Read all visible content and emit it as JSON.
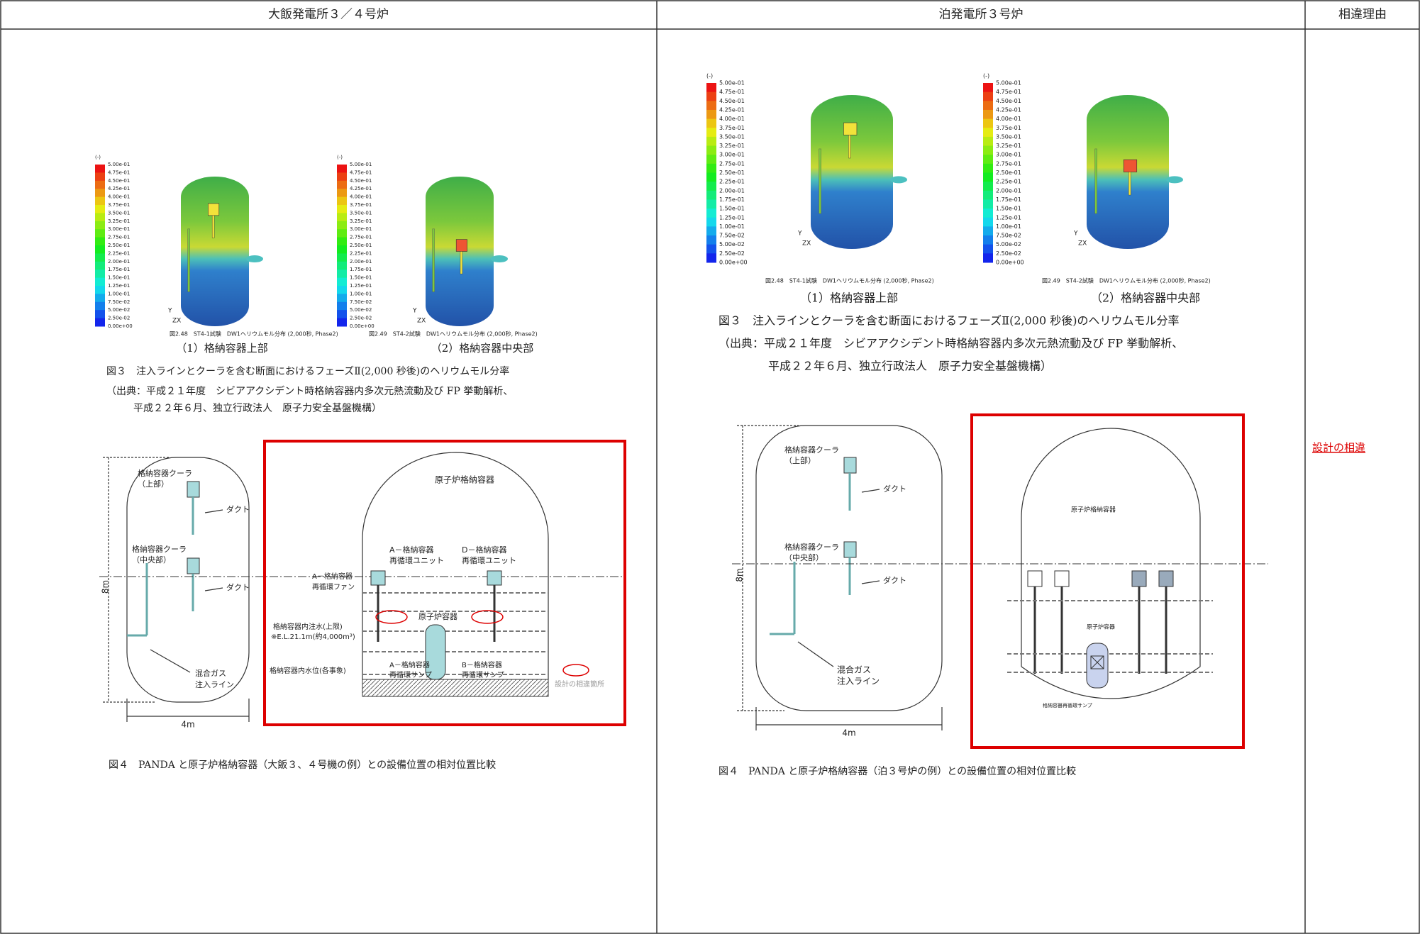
{
  "header": {
    "left": "大飯発電所３／４号炉",
    "middle": "泊発電所３号炉",
    "right": "相違理由"
  },
  "colorbar": {
    "unit": "(-)",
    "labels": [
      "5.00e-01",
      "4.75e-01",
      "4.50e-01",
      "4.25e-01",
      "4.00e-01",
      "3.75e-01",
      "3.50e-01",
      "3.25e-01",
      "3.00e-01",
      "2.75e-01",
      "2.50e-01",
      "2.25e-01",
      "2.00e-01",
      "1.75e-01",
      "1.50e-01",
      "1.25e-01",
      "1.00e-01",
      "7.50e-02",
      "5.00e-02",
      "2.50e-02",
      "0.00e+00"
    ],
    "axis_y": "Y",
    "axis_zx": "ZX"
  },
  "left": {
    "plot_captions": [
      "図2.48　ST4-1試験　DW1ヘリウムモル分布 (2,000秒, Phase2)",
      "図2.49　ST4-2試験　DW1ヘリウムモル分布 (2,000秒, Phase2)"
    ],
    "subcaptions": [
      "（1）格納容器上部",
      "（2）格納容器中央部"
    ],
    "fig3_caption": "図３　注入ラインとクーラを含む断面におけるフェーズⅡ(2,000 秒後)のヘリウムモル分率",
    "source": [
      "（出典：平成２１年度　シビアアクシデント時格納容器内多次元熱流動及び FP 挙動解析、",
      "平成２２年６月、独立行政法人　原子力安全基盤機構）"
    ],
    "panda": {
      "cooler_upper": [
        "格納容器クーラ",
        "（上部）"
      ],
      "cooler_middle": [
        "格納容器クーラ",
        "（中央部）"
      ],
      "duct": "ダクト",
      "injection": [
        "混合ガス",
        "注入ライン"
      ],
      "height": "8m",
      "width": "4m"
    },
    "containment": {
      "title": "原子炉格納容器",
      "unit_a": [
        "A－格納容器",
        "再循環ユニット"
      ],
      "unit_d": [
        "D－格納容器",
        "再循環ユニット"
      ],
      "fan_a": [
        "A－格納容器",
        "再循環ファン"
      ],
      "vessel": "原子炉容器",
      "water_upper": [
        "格納容器内注水(上限)",
        "※E.L.21.1m(約4,000m³)"
      ],
      "water_level": "格納容器内水位(各事象)",
      "sump_a": [
        "A－格納容器",
        "再循環サンプ"
      ],
      "sump_b": [
        "B－格納容器",
        "再循環サンプ"
      ],
      "legend": "設計の相違箇所"
    },
    "fig4_caption": "図４　PANDA と原子炉格納容器（大飯３、４号機の例）との設備位置の相対位置比較"
  },
  "middle": {
    "plot_captions": [
      "図2.48　ST4-1試験　DW1ヘリウムモル分布 (2,000秒, Phase2)",
      "図2.49　ST4-2試験　DW1ヘリウムモル分布 (2,000秒, Phase2)"
    ],
    "subcaptions": [
      "（1）格納容器上部",
      "（2）格納容器中央部"
    ],
    "fig3_caption": "図３　注入ラインとクーラを含む断面におけるフェーズⅡ(2,000 秒後)のヘリウムモル分率",
    "source": [
      "（出典：平成２１年度　シビアアクシデント時格納容器内多次元熱流動及び FP 挙動解析、",
      "平成２２年６月、独立行政法人　原子力安全基盤機構）"
    ],
    "panda": {
      "cooler_upper": [
        "格納容器クーラ",
        "（上部）"
      ],
      "cooler_middle": [
        "格納容器クーラ",
        "（中央部）"
      ],
      "duct": "ダクト",
      "injection": [
        "混合ガス",
        "注入ライン"
      ],
      "height": "8m",
      "width": "4m"
    },
    "containment": {
      "title": "原子炉格納容器",
      "vessel": "原子炉容器",
      "sump": "格納容器再循環サンプ"
    },
    "fig4_caption": "図４　PANDA と原子炉格納容器（泊３号炉の例）との設備位置の相対位置比較"
  },
  "reason": "設計の相違"
}
